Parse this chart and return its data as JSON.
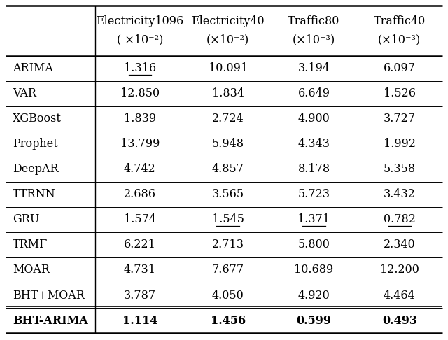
{
  "col_headers": [
    "Electricity1096",
    "Electricity40",
    "Traffic80",
    "Traffic40"
  ],
  "col_subheaders": [
    "( ×10⁻²)",
    "(×10⁻²)",
    "(×10⁻³)",
    "(×10⁻³)"
  ],
  "rows": [
    [
      "ARIMA",
      "1.316",
      "10.091",
      "3.194",
      "6.097"
    ],
    [
      "VAR",
      "12.850",
      "1.834",
      "6.649",
      "1.526"
    ],
    [
      "XGBoost",
      "1.839",
      "2.724",
      "4.900",
      "3.727"
    ],
    [
      "Prophet",
      "13.799",
      "5.948",
      "4.343",
      "1.992"
    ],
    [
      "DeepAR",
      "4.742",
      "4.857",
      "8.178",
      "5.358"
    ],
    [
      "TTRNN",
      "2.686",
      "3.565",
      "5.723",
      "3.432"
    ],
    [
      "GRU",
      "1.574",
      "1.545",
      "1.371",
      "0.782"
    ],
    [
      "TRMF",
      "6.221",
      "2.713",
      "5.800",
      "2.340"
    ],
    [
      "MOAR",
      "4.731",
      "7.677",
      "10.689",
      "12.200"
    ],
    [
      "BHT+MOAR",
      "3.787",
      "4.050",
      "4.920",
      "4.464"
    ],
    [
      "BHT-ARIMA",
      "1.114",
      "1.456",
      "0.599",
      "0.493"
    ]
  ],
  "underline_cells": [
    [
      0,
      1
    ],
    [
      6,
      2
    ],
    [
      6,
      3
    ],
    [
      6,
      4
    ]
  ],
  "bold_rows": [
    10
  ],
  "bg_color": "#ffffff",
  "text_color": "#000000"
}
